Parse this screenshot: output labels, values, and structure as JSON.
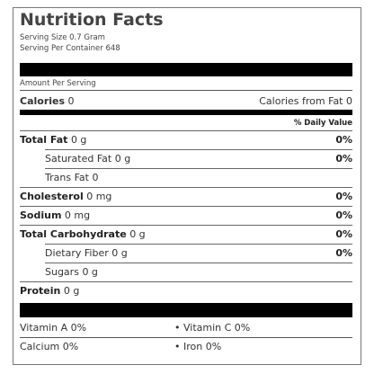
{
  "title": "Nutrition Facts",
  "serving_size": "Serving Size 0.7 Gram",
  "servings_per_container": "Serving Per Container 648",
  "amount_per_serving": "Amount Per Serving",
  "calories": {
    "label": "Calories",
    "value": "0"
  },
  "calories_from_fat": "Calories from Fat 0",
  "daily_value_header": "% Daily Value",
  "nutrients": [
    {
      "name": "Total Fat",
      "amount": "0 g",
      "daily_value": "0%"
    },
    {
      "name": "Saturated Fat",
      "amount": "0 g",
      "daily_value": "0%"
    },
    {
      "name": "Trans Fat",
      "amount": "0"
    },
    {
      "name": "Cholesterol",
      "amount": "0 mg",
      "daily_value": "0%"
    },
    {
      "name": "Sodium",
      "amount": "0 mg",
      "daily_value": "0%"
    },
    {
      "name": "Total Carbohydrate",
      "amount": "0 g",
      "daily_value": "0%"
    },
    {
      "name": "Dietary Fiber",
      "amount": "0 g",
      "daily_value": "0%"
    },
    {
      "name": "Sugars",
      "amount": "0 g"
    },
    {
      "name": "Protein",
      "amount": "0 g"
    }
  ],
  "vitamins": [
    "Vitamin A 0%",
    "Vitamin C 0%",
    "Calcium 0%",
    "Iron 0%"
  ]
}
